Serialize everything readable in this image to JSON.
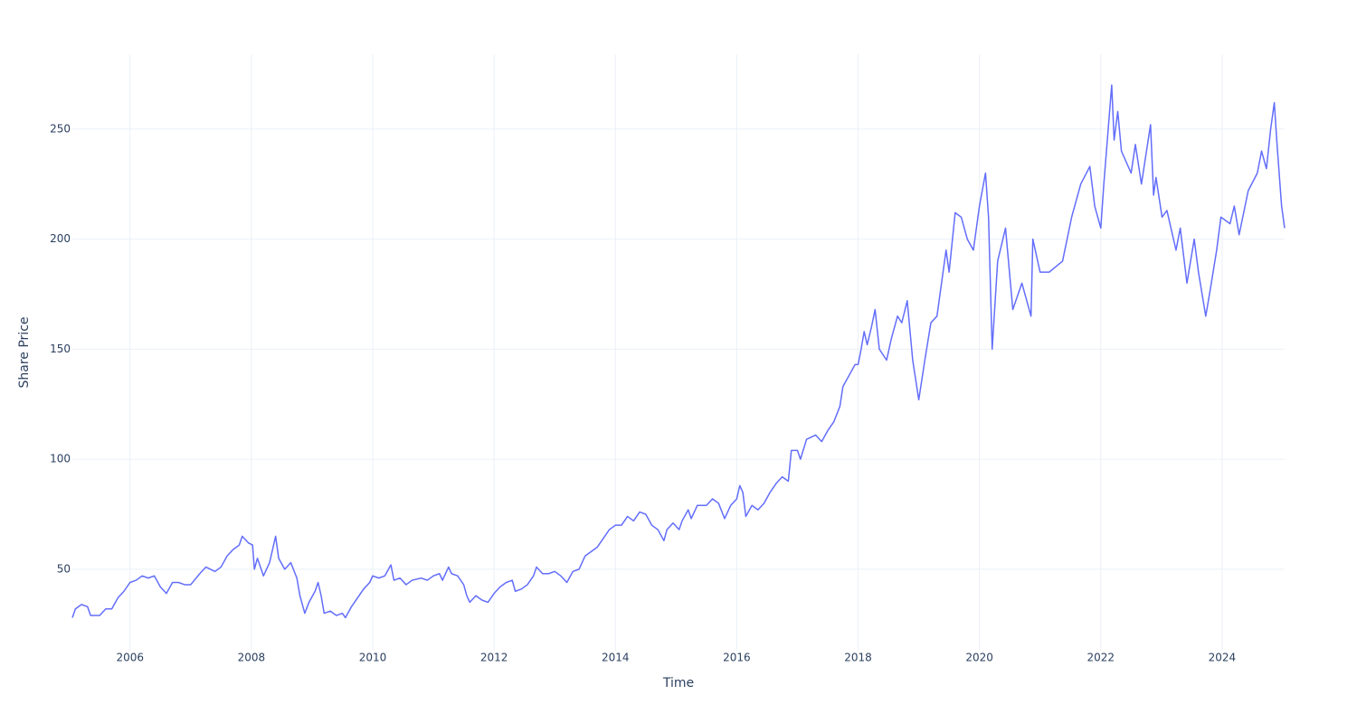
{
  "chart_data": {
    "type": "line",
    "x_label": "Time",
    "y_label": "Share Price",
    "color": "#636efa",
    "grid": true,
    "xlim": [
      2005.05,
      2025.03
    ],
    "xticks": [
      2006,
      2008,
      2010,
      2012,
      2014,
      2016,
      2018,
      2020,
      2022,
      2024
    ],
    "ylim": [
      13,
      284
    ],
    "yticks": [
      50,
      100,
      150,
      200,
      250
    ],
    "x": [
      2005.05,
      2005.1,
      2005.2,
      2005.3,
      2005.35,
      2005.5,
      2005.6,
      2005.7,
      2005.8,
      2005.9,
      2006.0,
      2006.1,
      2006.2,
      2006.3,
      2006.4,
      2006.5,
      2006.6,
      2006.7,
      2006.8,
      2006.9,
      2007.0,
      2007.15,
      2007.25,
      2007.4,
      2007.5,
      2007.6,
      2007.7,
      2007.8,
      2007.85,
      2007.95,
      2008.02,
      2008.05,
      2008.1,
      2008.2,
      2008.3,
      2008.4,
      2008.45,
      2008.55,
      2008.65,
      2008.75,
      2008.8,
      2008.88,
      2008.95,
      2009.05,
      2009.1,
      2009.15,
      2009.2,
      2009.3,
      2009.4,
      2009.5,
      2009.55,
      2009.65,
      2009.75,
      2009.85,
      2009.95,
      2010.0,
      2010.1,
      2010.2,
      2010.3,
      2010.35,
      2010.45,
      2010.55,
      2010.65,
      2010.8,
      2010.9,
      2011.0,
      2011.1,
      2011.15,
      2011.25,
      2011.3,
      2011.4,
      2011.5,
      2011.55,
      2011.6,
      2011.7,
      2011.8,
      2011.9,
      2012.0,
      2012.1,
      2012.2,
      2012.3,
      2012.35,
      2012.45,
      2012.55,
      2012.65,
      2012.7,
      2012.8,
      2012.9,
      2013.0,
      2013.1,
      2013.2,
      2013.3,
      2013.4,
      2013.5,
      2013.6,
      2013.7,
      2013.8,
      2013.9,
      2014.0,
      2014.1,
      2014.2,
      2014.3,
      2014.4,
      2014.5,
      2014.6,
      2014.7,
      2014.8,
      2014.85,
      2014.95,
      2015.05,
      2015.1,
      2015.2,
      2015.25,
      2015.35,
      2015.5,
      2015.6,
      2015.7,
      2015.8,
      2015.9,
      2016.0,
      2016.05,
      2016.1,
      2016.15,
      2016.25,
      2016.35,
      2016.45,
      2016.55,
      2016.65,
      2016.75,
      2016.85,
      2016.9,
      2017.0,
      2017.05,
      2017.15,
      2017.3,
      2017.4,
      2017.5,
      2017.6,
      2017.7,
      2017.75,
      2017.85,
      2017.95,
      2018.0,
      2018.05,
      2018.1,
      2018.15,
      2018.22,
      2018.28,
      2018.35,
      2018.47,
      2018.55,
      2018.65,
      2018.72,
      2018.81,
      2018.9,
      2019.0,
      2019.1,
      2019.2,
      2019.3,
      2019.45,
      2019.5,
      2019.6,
      2019.7,
      2019.8,
      2019.9,
      2020.0,
      2020.1,
      2020.15,
      2020.21,
      2020.3,
      2020.43,
      2020.55,
      2020.7,
      2020.85,
      2020.88,
      2021.0,
      2021.15,
      2021.37,
      2021.52,
      2021.67,
      2021.82,
      2021.9,
      2022.0,
      2022.05,
      2022.18,
      2022.22,
      2022.28,
      2022.34,
      2022.5,
      2022.57,
      2022.67,
      2022.82,
      2022.87,
      2022.91,
      2023.01,
      2023.09,
      2023.24,
      2023.31,
      2023.42,
      2023.54,
      2023.61,
      2023.73,
      2023.81,
      2023.91,
      2023.98,
      2024.13,
      2024.2,
      2024.28,
      2024.43,
      2024.58,
      2024.65,
      2024.73,
      2024.8,
      2024.86,
      2024.9,
      2024.98,
      2025.03
    ],
    "values": [
      28,
      32,
      34,
      33,
      29,
      29,
      32,
      32,
      37,
      40,
      44,
      45,
      47,
      46,
      47,
      42,
      39,
      44,
      44,
      43,
      43,
      48,
      51,
      49,
      51,
      56,
      59,
      61,
      65,
      62,
      61,
      50,
      55,
      47,
      53,
      65,
      55,
      50,
      53,
      46,
      38,
      30,
      35,
      40,
      44,
      38,
      30,
      31,
      29,
      30,
      28,
      33,
      37,
      41,
      44,
      47,
      46,
      47,
      52,
      45,
      46,
      43,
      45,
      46,
      45,
      47,
      48,
      45,
      51,
      48,
      47,
      43,
      38,
      35,
      38,
      36,
      35,
      39,
      42,
      44,
      45,
      40,
      41,
      43,
      47,
      51,
      48,
      48,
      49,
      47,
      44,
      49,
      50,
      56,
      58,
      60,
      64,
      68,
      70,
      70,
      74,
      72,
      76,
      75,
      70,
      68,
      63,
      68,
      71,
      68,
      72,
      77,
      73,
      79,
      79,
      82,
      80,
      73,
      79,
      82,
      88,
      85,
      74,
      79,
      77,
      80,
      85,
      89,
      92,
      90,
      104,
      104,
      100,
      109,
      111,
      108,
      113,
      117,
      124,
      133,
      138,
      143,
      143,
      150,
      158,
      152,
      160,
      168,
      150,
      145,
      155,
      165,
      162,
      172,
      145,
      127,
      145,
      162,
      165,
      195,
      185,
      212,
      210,
      200,
      195,
      215,
      230,
      210,
      150,
      190,
      205,
      168,
      180,
      165,
      200,
      185,
      185,
      190,
      210,
      225,
      233,
      215,
      205,
      225,
      270,
      245,
      258,
      240,
      230,
      243,
      225,
      252,
      220,
      228,
      210,
      213,
      195,
      205,
      180,
      200,
      185,
      165,
      178,
      195,
      210,
      207,
      215,
      202,
      222,
      230,
      240,
      232,
      250,
      262,
      245,
      215,
      205
    ]
  }
}
